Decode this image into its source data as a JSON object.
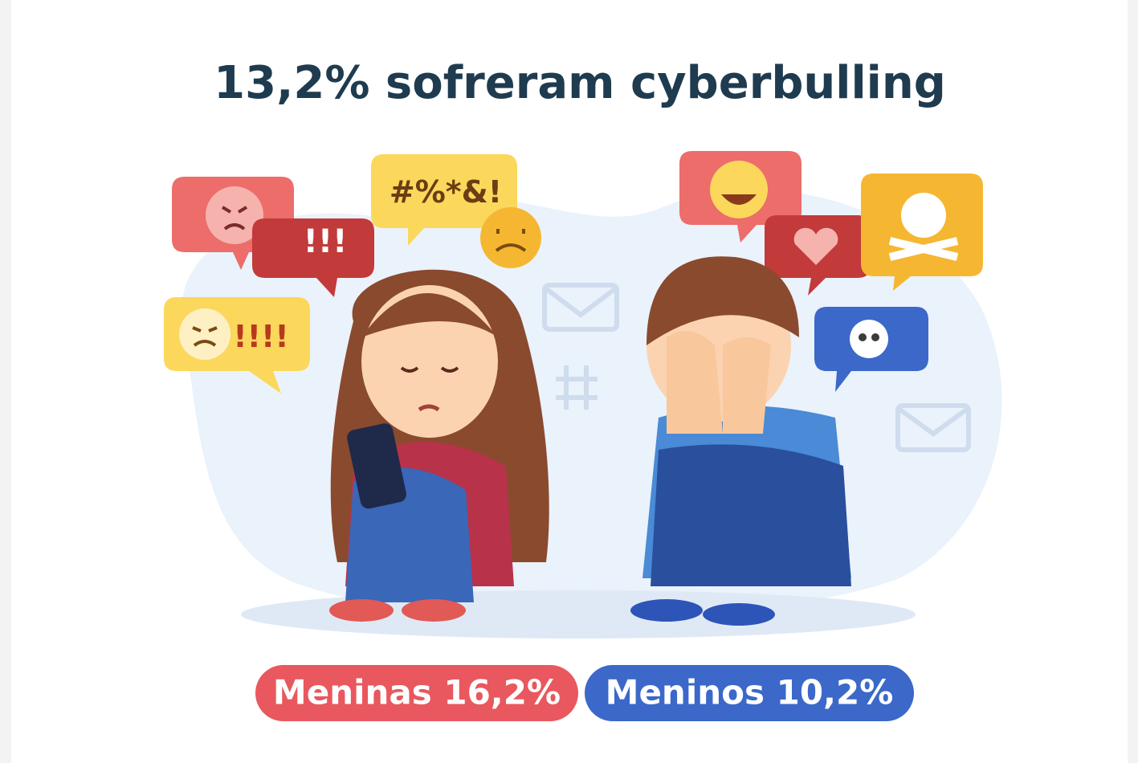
{
  "title": "13,2% sofreram cyberbulling",
  "bubbles": [
    "#%*&!",
    "!!!",
    "!!!!"
  ],
  "labels": [
    "Meninas 16,2%",
    "Meninos 10,2%"
  ]
}
